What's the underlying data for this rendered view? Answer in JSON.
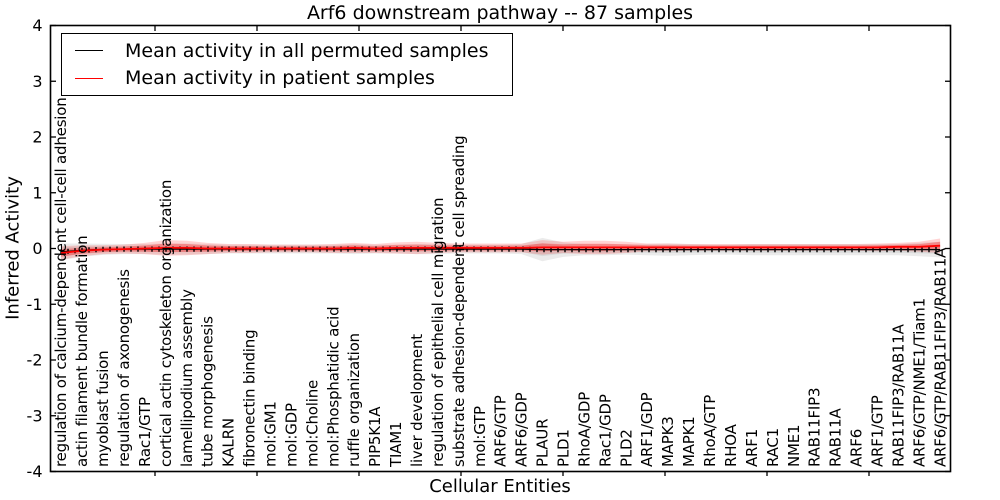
{
  "figure": {
    "title": "Arf6 downstream pathway -- 87 samples",
    "xlabel": "Cellular Entities",
    "ylabel": "Inferred Activity"
  },
  "legend": {
    "items": [
      {
        "label": "Mean activity in all permuted samples",
        "color": "#000000"
      },
      {
        "label": "Mean activity in patient samples",
        "color": "#ff0000"
      }
    ]
  },
  "chart_data": {
    "type": "line",
    "title": "Arf6 downstream pathway -- 87 samples",
    "xlabel": "Cellular Entities",
    "ylabel": "Inferred Activity",
    "ylim": [
      -4,
      4
    ],
    "yticks": [
      4,
      3,
      2,
      1,
      0,
      -1,
      -2,
      -3,
      -4
    ],
    "grid": false,
    "legend_position": "upper left",
    "categories": [
      "regulation of calcium-dependent cell-cell adhesion",
      "actin filament bundle formation",
      "myoblast fusion",
      "regulation of axonogenesis",
      "Rac1/GTP",
      "cortical actin cytoskeleton organization",
      "lamellipodium assembly",
      "tube morphogenesis",
      "KALRN",
      "fibronectin binding",
      "mol:GM1",
      "mol:GDP",
      "mol:Choline",
      "mol:Phosphatidic acid",
      "ruffle organization",
      "PIP5K1A",
      "TIAM1",
      "liver development",
      "regulation of epithelial cell migration",
      "substrate adhesion-dependent cell spreading",
      "mol:GTP",
      "ARF6/GTP",
      "ARF6/GDP",
      "PLAUR",
      "PLD1",
      "RhoA/GDP",
      "Rac1/GDP",
      "PLD2",
      "ARF1/GDP",
      "MAPK3",
      "MAPK1",
      "RhoA/GTP",
      "RHOA",
      "ARF1",
      "RAC1",
      "NME1",
      "RAB11FIP3",
      "RAB11A",
      "ARF6",
      "ARF1/GTP",
      "RAB11FIP3/RAB11A",
      "ARF6/GTP/NME1/Tiam1",
      "ARF6/GTP/RAB11FIP3/RAB11A"
    ],
    "series": [
      {
        "name": "Mean activity in all permuted samples",
        "color": "#000000",
        "band_color": "#777777",
        "values": [
          -0.06,
          -0.03,
          -0.015,
          -0.01,
          -0.01,
          -0.01,
          -0.01,
          -0.01,
          -0.01,
          -0.01,
          -0.01,
          -0.01,
          -0.01,
          -0.01,
          -0.01,
          -0.01,
          -0.01,
          -0.01,
          -0.01,
          -0.01,
          -0.01,
          -0.01,
          -0.01,
          -0.02,
          -0.02,
          -0.02,
          -0.02,
          -0.02,
          -0.02,
          -0.02,
          -0.02,
          -0.02,
          -0.02,
          -0.02,
          -0.02,
          -0.02,
          -0.02,
          -0.02,
          -0.02,
          -0.02,
          -0.02,
          -0.02,
          -0.02
        ],
        "band_halfwidth": [
          0.15,
          0.12,
          0.1,
          0.09,
          0.09,
          0.1,
          0.1,
          0.09,
          0.08,
          0.08,
          0.08,
          0.08,
          0.08,
          0.08,
          0.09,
          0.08,
          0.08,
          0.09,
          0.09,
          0.08,
          0.08,
          0.08,
          0.09,
          0.21,
          0.13,
          0.1,
          0.1,
          0.09,
          0.1,
          0.11,
          0.1,
          0.09,
          0.09,
          0.1,
          0.1,
          0.1,
          0.1,
          0.1,
          0.1,
          0.1,
          0.1,
          0.12,
          0.14
        ]
      },
      {
        "name": "Mean activity in patient samples",
        "color": "#ff0000",
        "band_color": "#ff0000",
        "values": [
          -0.08,
          -0.04,
          -0.02,
          -0.01,
          0.0,
          0.01,
          0.01,
          0.0,
          0.0,
          0.0,
          0.0,
          0.0,
          0.0,
          0.0,
          0.01,
          0.0,
          0.01,
          0.01,
          0.01,
          0.01,
          0.01,
          0.01,
          0.01,
          0.02,
          0.02,
          0.02,
          0.02,
          0.02,
          0.02,
          0.02,
          0.02,
          0.02,
          0.02,
          0.02,
          0.02,
          0.02,
          0.02,
          0.02,
          0.02,
          0.02,
          0.03,
          0.03,
          0.05
        ],
        "band_halfwidth": [
          0.12,
          0.1,
          0.08,
          0.08,
          0.1,
          0.14,
          0.13,
          0.1,
          0.08,
          0.08,
          0.07,
          0.07,
          0.07,
          0.08,
          0.09,
          0.08,
          0.1,
          0.11,
          0.09,
          0.08,
          0.08,
          0.08,
          0.08,
          0.13,
          0.1,
          0.12,
          0.12,
          0.1,
          0.07,
          0.07,
          0.06,
          0.06,
          0.06,
          0.06,
          0.06,
          0.06,
          0.06,
          0.06,
          0.06,
          0.07,
          0.07,
          0.09,
          0.13
        ]
      }
    ]
  }
}
